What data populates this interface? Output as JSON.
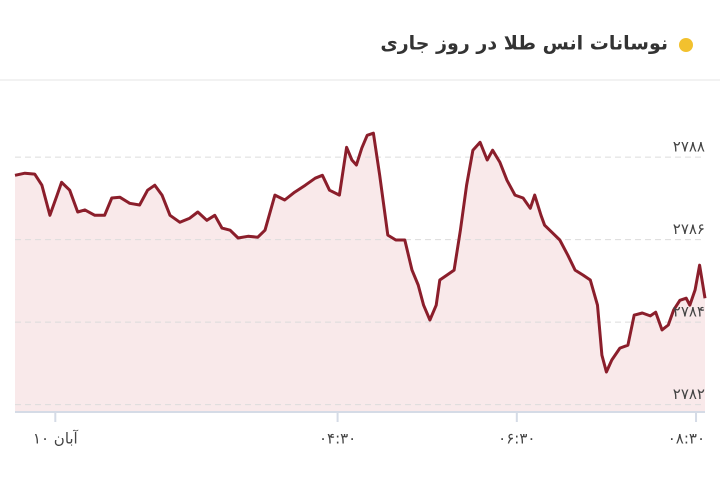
{
  "chart_data": {
    "type": "line",
    "title": "نوسانات انس طلا در روز جاری",
    "color": "#8b1e2b",
    "fill_color": "#f9e9ea",
    "grid": true,
    "ylim": [
      2781.82,
      2789.75
    ],
    "yticks": [
      {
        "value": 2782,
        "label": "۲۷۸۲"
      },
      {
        "value": 2784,
        "label": "۲۷۸۴"
      },
      {
        "value": 2786,
        "label": "۲۷۸۶"
      },
      {
        "value": 2788,
        "label": "۲۷۸۸"
      }
    ],
    "xlim": [
      0.9,
      8.6
    ],
    "xticks": [
      {
        "value": 1.35,
        "label": "۱۰ آبان"
      },
      {
        "value": 4.5,
        "label": "۰۴:۳۰"
      },
      {
        "value": 6.5,
        "label": "۰۶:۳۰"
      },
      {
        "value": 8.5,
        "label": "۰۸:۳۰"
      }
    ],
    "x": [
      0.9,
      1.01,
      1.12,
      1.2,
      1.29,
      1.37,
      1.42,
      1.51,
      1.6,
      1.68,
      1.79,
      1.9,
      1.98,
      2.07,
      2.18,
      2.29,
      2.38,
      2.46,
      2.54,
      2.63,
      2.74,
      2.85,
      2.94,
      3.04,
      3.13,
      3.21,
      3.3,
      3.39,
      3.5,
      3.61,
      3.69,
      3.8,
      3.91,
      4.02,
      4.14,
      4.25,
      4.33,
      4.41,
      4.52,
      4.6,
      4.66,
      4.71,
      4.77,
      4.83,
      4.9,
      4.97,
      5.06,
      5.15,
      5.25,
      5.33,
      5.4,
      5.46,
      5.53,
      5.6,
      5.64,
      5.72,
      5.8,
      5.87,
      5.94,
      6.01,
      6.09,
      6.17,
      6.23,
      6.31,
      6.39,
      6.48,
      6.57,
      6.65,
      6.7,
      6.77,
      6.81,
      6.89,
      6.98,
      7.07,
      7.15,
      7.24,
      7.32,
      7.4,
      7.45,
      7.5,
      7.56,
      7.65,
      7.74,
      7.81,
      7.9,
      7.99,
      8.05,
      8.12,
      8.19,
      8.25,
      8.32,
      8.39,
      8.43,
      8.49,
      8.54,
      8.6
    ],
    "values": [
      2787.56,
      2787.61,
      2787.59,
      2787.32,
      2786.59,
      2787.08,
      2787.39,
      2787.2,
      2786.67,
      2786.72,
      2786.59,
      2786.59,
      2787.01,
      2787.03,
      2786.88,
      2786.84,
      2787.2,
      2787.32,
      2787.08,
      2786.59,
      2786.42,
      2786.52,
      2786.67,
      2786.47,
      2786.59,
      2786.28,
      2786.23,
      2786.04,
      2786.08,
      2786.06,
      2786.23,
      2787.08,
      2786.96,
      2787.15,
      2787.32,
      2787.49,
      2787.56,
      2787.2,
      2787.08,
      2788.24,
      2787.93,
      2787.81,
      2788.22,
      2788.53,
      2788.58,
      2787.56,
      2786.11,
      2785.99,
      2785.99,
      2785.26,
      2784.9,
      2784.41,
      2784.05,
      2784.41,
      2785.02,
      2785.14,
      2785.26,
      2786.23,
      2787.32,
      2788.17,
      2788.36,
      2787.93,
      2788.17,
      2787.88,
      2787.44,
      2787.08,
      2787.01,
      2786.76,
      2787.08,
      2786.59,
      2786.35,
      2786.18,
      2785.99,
      2785.62,
      2785.26,
      2785.14,
      2785.02,
      2784.41,
      2783.2,
      2782.79,
      2783.08,
      2783.37,
      2783.44,
      2784.17,
      2784.22,
      2784.15,
      2784.24,
      2783.81,
      2783.93,
      2784.29,
      2784.53,
      2784.58,
      2784.41,
      2784.78,
      2785.38,
      2784.58
    ]
  }
}
